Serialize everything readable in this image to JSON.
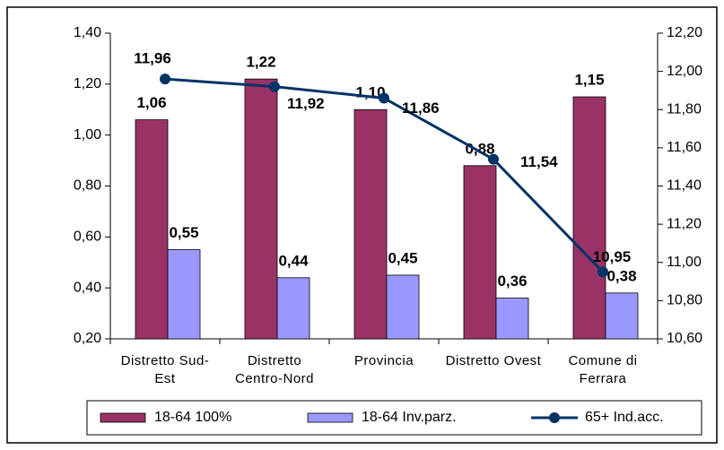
{
  "chart_data": {
    "type": "bar",
    "categories": [
      "Distretto Sud-Est",
      "Distretto Centro-Nord",
      "Provincia",
      "Distretto Ovest",
      "Comune di Ferrara"
    ],
    "series": [
      {
        "name": "18-64 100%",
        "type": "bar",
        "color": "#993366",
        "values": [
          1.06,
          1.22,
          1.1,
          0.88,
          1.15
        ],
        "value_labels": [
          "1,06",
          "1,22",
          "1,10",
          "0,88",
          "1,15"
        ]
      },
      {
        "name": "18-64 Inv.parz.",
        "type": "bar",
        "color": "#9999ff",
        "values": [
          0.55,
          0.44,
          0.45,
          0.36,
          0.38
        ],
        "value_labels": [
          "0,55",
          "0,44",
          "0,45",
          "0,36",
          "0,38"
        ]
      },
      {
        "name": "65+ Ind.acc.",
        "type": "line",
        "axis": "y2",
        "color": "#003366",
        "values": [
          11.96,
          11.92,
          11.86,
          11.54,
          10.95
        ],
        "value_labels": [
          "11,96",
          "11,92",
          "11,86",
          "11,54",
          "10,95"
        ]
      }
    ],
    "ylim": [
      0.2,
      1.4
    ],
    "yticks": [
      {
        "value": 0.2,
        "label": "0,20"
      },
      {
        "value": 0.4,
        "label": "0,40"
      },
      {
        "value": 0.6,
        "label": "0,60"
      },
      {
        "value": 0.8,
        "label": "0,80"
      },
      {
        "value": 1.0,
        "label": "1,00"
      },
      {
        "value": 1.2,
        "label": "1,20"
      },
      {
        "value": 1.4,
        "label": "1,40"
      }
    ],
    "y2lim": [
      10.6,
      12.2
    ],
    "y2ticks": [
      {
        "value": 10.6,
        "label": "10,60"
      },
      {
        "value": 10.8,
        "label": "10,80"
      },
      {
        "value": 11.0,
        "label": "11,00"
      },
      {
        "value": 11.2,
        "label": "11,20"
      },
      {
        "value": 11.4,
        "label": "11,40"
      },
      {
        "value": 11.6,
        "label": "11,60"
      },
      {
        "value": 11.8,
        "label": "11,80"
      },
      {
        "value": 12.0,
        "label": "12,00"
      },
      {
        "value": 12.2,
        "label": "12,20"
      }
    ],
    "legend": "bottom"
  }
}
